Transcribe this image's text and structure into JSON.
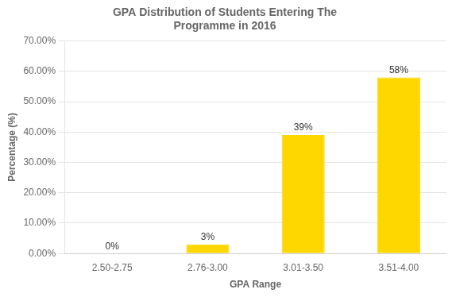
{
  "chart_data": {
    "type": "bar",
    "title": "GPA Distribution of Students Entering The\nProgramme in 2016",
    "xlabel": "GPA Range",
    "ylabel": "Percentage (%)",
    "categories": [
      "2.50-2.75",
      "2.76-3.00",
      "3.01-3.50",
      "3.51-4.00"
    ],
    "values": [
      0.0,
      0.03,
      0.39,
      0.58
    ],
    "value_labels": [
      "0%",
      "3%",
      "39%",
      "58%"
    ],
    "data_labels": true,
    "color": "#FFD700",
    "ylim": [
      0,
      0.7
    ],
    "yticks": [
      {
        "value": 0.0,
        "label": "0.00%"
      },
      {
        "value": 0.1,
        "label": "10.00%"
      },
      {
        "value": 0.2,
        "label": "20.00%"
      },
      {
        "value": 0.3,
        "label": "30.00%"
      },
      {
        "value": 0.4,
        "label": "40.00%"
      },
      {
        "value": 0.5,
        "label": "50.00%"
      },
      {
        "value": 0.6,
        "label": "60.00%"
      },
      {
        "value": 0.7,
        "label": "70.00%"
      }
    ],
    "grid": true
  }
}
